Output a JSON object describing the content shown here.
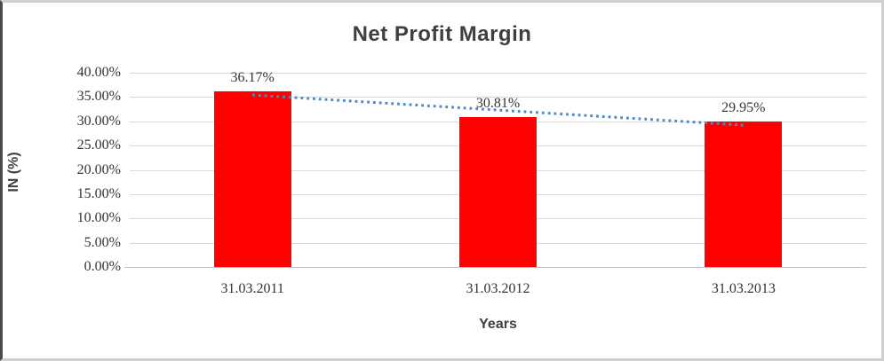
{
  "chart_data": {
    "type": "bar",
    "title": "Net Profit Margin",
    "xlabel": "Years",
    "ylabel": "IN (%)",
    "categories": [
      "31.03.2011",
      "31.03.2012",
      "31.03.2013"
    ],
    "values": [
      36.17,
      30.81,
      29.95
    ],
    "data_labels": [
      "36.17%",
      "30.81%",
      "29.95%"
    ],
    "ylim": [
      0,
      40
    ],
    "ytick_step": 5,
    "ytick_labels": [
      "40.00%",
      "35.00%",
      "30.00%",
      "25.00%",
      "20.00%",
      "15.00%",
      "10.00%",
      "5.00%",
      "0.00%"
    ],
    "grid": true,
    "legend_position": "none",
    "bar_color": "#ff0000",
    "trendline": {
      "type": "linear",
      "style": "dotted",
      "color": "#4f87c8"
    },
    "colors": {
      "gridline": "#d9d9d9",
      "axis_line": "#c3c3c3",
      "title_text": "#404040",
      "label_text": "#333333"
    }
  }
}
